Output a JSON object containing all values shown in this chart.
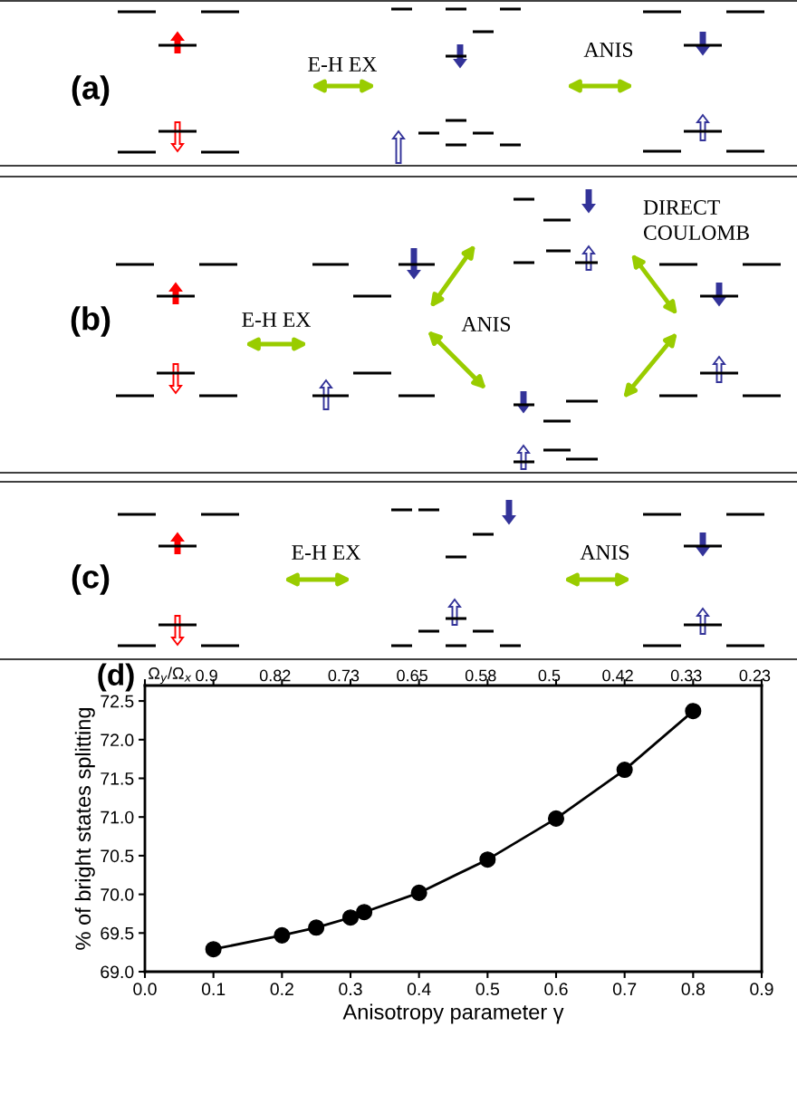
{
  "chart_data": [
    {
      "type": "other",
      "annotations": [
        "(a)",
        "E-H EX",
        "ANIS"
      ]
    },
    {
      "type": "other",
      "annotations": [
        "(b)",
        "E-H EX",
        "ANIS",
        "DIRECT\nCOULOMB"
      ]
    },
    {
      "type": "other",
      "annotations": [
        "(c)",
        "E-H EX",
        "ANIS"
      ]
    },
    {
      "type": "line",
      "title": "(d)",
      "xlabel": "Anisotropy parameter γ",
      "ylabel": "% of bright states splitting",
      "x2label": "Ω$_{y}$/Ω$_{x}$",
      "x": [
        0.1,
        0.2,
        0.25,
        0.3,
        0.32,
        0.4,
        0.5,
        0.6,
        0.7,
        0.8
      ],
      "series": [
        {
          "color": "#000000",
          "values": [
            69.29,
            69.47,
            69.57,
            69.7,
            69.77,
            70.02,
            70.45,
            70.98,
            71.61,
            72.37
          ]
        }
      ],
      "xlim": [
        0.0,
        0.9
      ],
      "xticks": [
        {
          "value": 0.0,
          "label": "0.0"
        },
        0.1,
        0.2,
        0.3,
        0.4,
        0.5,
        0.6,
        0.7,
        0.8,
        0.9
      ],
      "annotations": [
        "0.9",
        "0.82",
        "0.73",
        "0.65",
        "0.58",
        "0.5",
        "0.42",
        "0.33",
        "0.23"
      ],
      "ylim": [
        69.0,
        72.7
      ],
      "yticks": [
        {
          "value": 69.0,
          "label": "69.0"
        },
        69.5,
        {
          "value": 70.0,
          "label": "70.0"
        },
        70.5,
        {
          "value": 71.0,
          "label": "71.0"
        },
        71.5,
        {
          "value": 72.0,
          "label": "72.0"
        },
        72.5
      ],
      "marker": "circle",
      "line_style": "solid",
      "grid": false,
      "legend": false
    }
  ]
}
